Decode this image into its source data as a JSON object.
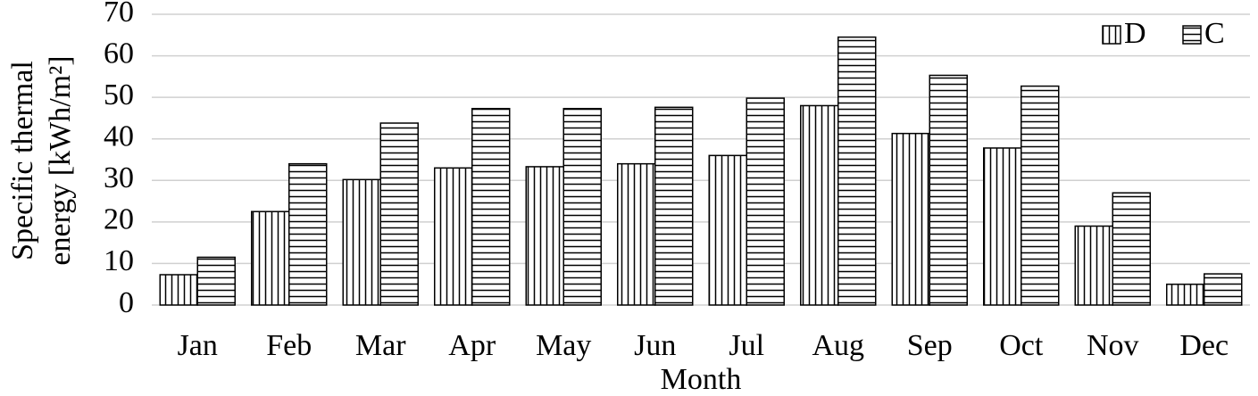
{
  "chart_data": {
    "type": "bar",
    "ylabel": [
      "Specific thermal",
      "energy [kWh/m²]"
    ],
    "xlabel": "Month",
    "categories": [
      "Jan",
      "Feb",
      "Mar",
      "Apr",
      "May",
      "Jun",
      "Jul",
      "Aug",
      "Sep",
      "Oct",
      "Nov",
      "Dec"
    ],
    "series": [
      {
        "name": "D",
        "color": "#000000",
        "pattern": "vertical",
        "values": [
          7.3,
          22.5,
          30.2,
          33,
          33.3,
          34,
          36,
          48,
          41.3,
          37.8,
          19,
          5
        ]
      },
      {
        "name": "C",
        "color": "#000000",
        "pattern": "horizontal",
        "values": [
          11.5,
          34,
          43.8,
          47.3,
          47.3,
          47.6,
          49.8,
          64.5,
          55.3,
          52.7,
          27,
          7.5
        ]
      }
    ],
    "ylim": [
      0,
      70
    ],
    "yticks": [
      0,
      10,
      20,
      30,
      40,
      50,
      60,
      70
    ],
    "grid": true,
    "legend": "top-right"
  }
}
